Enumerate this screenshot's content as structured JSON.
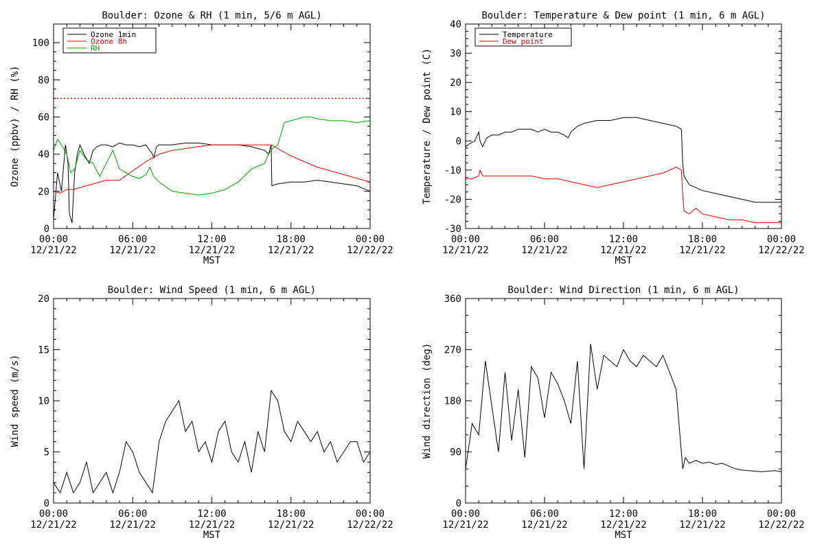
{
  "chart_data": [
    {
      "type": "line",
      "title": "Boulder: Ozone & RH (1 min, 5/6 m AGL)",
      "xlabel": "MST",
      "ylabel": "Ozone (ppbv) / RH (%)",
      "ylim": [
        0,
        110
      ],
      "yticks": [
        0,
        20,
        40,
        60,
        80,
        100
      ],
      "xlim": [
        0,
        24
      ],
      "xtick_times": [
        "00:00",
        "06:00",
        "12:00",
        "18:00",
        "00:00"
      ],
      "xtick_dates": [
        "12/21/22",
        "12/21/22",
        "12/21/22",
        "12/21/22",
        "12/22/22"
      ],
      "legend_position": "top-left",
      "reference_line": {
        "y": 70,
        "color": "#dd0000",
        "style": "dotted"
      },
      "series": [
        {
          "name": "Ozone 1min",
          "color": "#000000",
          "x": [
            0,
            0.3,
            0.6,
            0.9,
            1.1,
            1.2,
            1.4,
            1.6,
            1.8,
            2.0,
            2.3,
            2.7,
            3.0,
            3.3,
            3.6,
            4.0,
            4.5,
            5.0,
            5.5,
            6.0,
            6.5,
            7.0,
            7.5,
            7.6,
            7.8,
            8.0,
            8.5,
            9,
            10,
            11,
            12,
            13,
            14,
            15,
            16,
            16.3,
            16.5,
            16.55,
            17,
            18,
            19,
            20,
            21,
            22,
            23,
            24
          ],
          "y": [
            5,
            30,
            20,
            45,
            35,
            8,
            3,
            30,
            40,
            45,
            40,
            35,
            42,
            44,
            45,
            45,
            44,
            46,
            45,
            45,
            44,
            45,
            40,
            38,
            44,
            45,
            45,
            45,
            46,
            46,
            45,
            45,
            45,
            44,
            42,
            40,
            45,
            23,
            24,
            25,
            25,
            26,
            25,
            24,
            23,
            20
          ]
        },
        {
          "name": "Ozone 8h",
          "color": "#dd0000",
          "x": [
            0,
            0.5,
            1,
            1.5,
            2,
            3,
            4,
            5,
            6,
            7,
            8,
            9,
            10,
            11,
            12,
            13,
            14,
            15,
            16,
            16.5,
            17,
            18,
            19,
            20,
            21,
            22,
            23,
            24
          ],
          "y": [
            20,
            19,
            21,
            21,
            22,
            24,
            26,
            26,
            31,
            36,
            40,
            42,
            43,
            44,
            45,
            45,
            45,
            45,
            45,
            45,
            43,
            39,
            36,
            33,
            31,
            29,
            27,
            25
          ]
        },
        {
          "name": "RH",
          "color": "#00a000",
          "x": [
            0,
            0.3,
            0.6,
            1,
            1.3,
            1.6,
            2,
            2.5,
            3,
            3.5,
            4,
            4.5,
            5,
            5.5,
            6,
            6.5,
            7,
            7.3,
            7.6,
            8,
            9,
            10,
            11,
            12,
            13,
            14,
            15,
            16,
            16.3,
            16.5,
            16.6,
            17,
            17.5,
            18,
            19,
            19.5,
            20,
            21,
            22,
            23,
            24
          ],
          "y": [
            42,
            48,
            45,
            40,
            30,
            32,
            42,
            37,
            35,
            28,
            35,
            42,
            32,
            30,
            28,
            27,
            29,
            33,
            28,
            25,
            20,
            19,
            18,
            19,
            21,
            25,
            32,
            35,
            40,
            42,
            43,
            45,
            57,
            58,
            60,
            60,
            59,
            58,
            58,
            57,
            58
          ]
        }
      ]
    },
    {
      "type": "line",
      "title": "Boulder: Temperature & Dew point (1 min, 6 m AGL)",
      "xlabel": "MST",
      "ylabel": "Temperature / Dew point (C)",
      "ylim": [
        -30,
        40
      ],
      "yticks": [
        -30,
        -20,
        -10,
        0,
        10,
        20,
        30,
        40
      ],
      "xlim": [
        0,
        24
      ],
      "xtick_times": [
        "00:00",
        "06:00",
        "12:00",
        "18:00",
        "00:00"
      ],
      "xtick_dates": [
        "12/21/22",
        "12/21/22",
        "12/21/22",
        "12/21/22",
        "12/22/22"
      ],
      "legend_position": "top-left",
      "series": [
        {
          "name": "Temperature",
          "color": "#000000",
          "x": [
            0,
            0.3,
            0.7,
            1,
            1.1,
            1.3,
            1.6,
            2,
            2.5,
            3,
            3.5,
            4,
            4.5,
            5,
            5.5,
            6,
            6.5,
            7,
            7.5,
            7.8,
            8,
            8.5,
            9,
            10,
            11,
            12,
            13,
            14,
            15,
            16,
            16.4,
            16.5,
            16.6,
            17,
            18,
            19,
            20,
            21,
            22,
            23,
            24
          ],
          "y": [
            -2,
            -1,
            0,
            3,
            0,
            -2,
            1,
            2,
            2,
            3,
            3,
            4,
            4,
            4,
            3,
            4,
            3,
            3,
            2,
            1,
            3,
            5,
            6,
            7,
            7,
            8,
            8,
            7,
            6,
            5,
            4,
            -8,
            -12,
            -15,
            -17,
            -18,
            -19,
            -20,
            -21,
            -21,
            -21
          ]
        },
        {
          "name": "Dew point",
          "color": "#dd0000",
          "x": [
            0,
            0.5,
            1,
            1.1,
            1.3,
            1.6,
            2,
            3,
            4,
            5,
            6,
            7,
            8,
            9,
            10,
            11,
            12,
            13,
            14,
            15,
            16,
            16.4,
            16.5,
            16.6,
            17,
            17.5,
            18,
            19,
            20,
            21,
            22,
            23,
            24
          ],
          "y": [
            -13,
            -13,
            -12,
            -10,
            -12,
            -12,
            -12,
            -12,
            -12,
            -12,
            -13,
            -13,
            -14,
            -15,
            -16,
            -15,
            -14,
            -13,
            -12,
            -11,
            -9,
            -10,
            -19,
            -24,
            -25,
            -23,
            -25,
            -26,
            -27,
            -27,
            -28,
            -28,
            -28
          ]
        }
      ]
    },
    {
      "type": "line",
      "title": "Boulder: Wind Speed (1 min, 6 m AGL)",
      "xlabel": "MST",
      "ylabel": "Wind speed (m/s)",
      "ylim": [
        0,
        20
      ],
      "yticks": [
        0,
        5,
        10,
        15,
        20
      ],
      "xlim": [
        0,
        24
      ],
      "xtick_times": [
        "00:00",
        "06:00",
        "12:00",
        "18:00",
        "00:00"
      ],
      "xtick_dates": [
        "12/21/22",
        "12/21/22",
        "12/21/22",
        "12/21/22",
        "12/22/22"
      ],
      "series": [
        {
          "color": "#000000",
          "x": [
            0,
            0.5,
            1,
            1.5,
            2,
            2.5,
            3,
            3.5,
            4,
            4.5,
            5,
            5.5,
            6,
            6.5,
            7,
            7.5,
            8,
            8.5,
            9,
            9.5,
            10,
            10.5,
            11,
            11.5,
            12,
            12.5,
            13,
            13.5,
            14,
            14.5,
            15,
            15.5,
            16,
            16.5,
            17,
            17.5,
            18,
            18.5,
            19,
            19.5,
            20,
            20.5,
            21,
            21.5,
            22,
            22.5,
            23,
            23.5,
            24
          ],
          "y": [
            2,
            1,
            3,
            1,
            2,
            4,
            1,
            2,
            3,
            1,
            3,
            6,
            5,
            3,
            2,
            1,
            6,
            8,
            9,
            10,
            7,
            8,
            5,
            6,
            4,
            7,
            8,
            5,
            4,
            6,
            3,
            7,
            5,
            11,
            10,
            7,
            6,
            8,
            7,
            6,
            7,
            5,
            6,
            4,
            5,
            6,
            6,
            4,
            5
          ]
        }
      ]
    },
    {
      "type": "line",
      "title": "Boulder: Wind Direction (1 min, 6 m AGL)",
      "xlabel": "MST",
      "ylabel": "Wind direction (deg)",
      "ylim": [
        0,
        360
      ],
      "yticks": [
        0,
        90,
        180,
        270,
        360
      ],
      "xlim": [
        0,
        24
      ],
      "xtick_times": [
        "00:00",
        "06:00",
        "12:00",
        "18:00",
        "00:00"
      ],
      "xtick_dates": [
        "12/21/22",
        "12/21/22",
        "12/21/22",
        "12/21/22",
        "12/22/22"
      ],
      "series": [
        {
          "color": "#000000",
          "x": [
            0,
            0.5,
            1,
            1.5,
            2,
            2.5,
            3,
            3.5,
            4,
            4.5,
            5,
            5.5,
            6,
            6.5,
            7,
            7.5,
            8,
            8.5,
            9,
            9.5,
            10,
            10.5,
            11,
            11.5,
            12,
            12.5,
            13,
            13.5,
            14,
            14.5,
            15,
            15.5,
            16,
            16.5,
            16.7,
            17,
            17.5,
            18,
            18.5,
            19,
            19.5,
            20,
            20.5,
            21,
            21.5,
            22,
            22.5,
            23,
            23.5,
            24
          ],
          "y": [
            60,
            140,
            120,
            250,
            170,
            90,
            230,
            110,
            200,
            80,
            240,
            220,
            150,
            230,
            210,
            180,
            140,
            250,
            60,
            280,
            200,
            260,
            250,
            240,
            270,
            250,
            240,
            260,
            250,
            240,
            260,
            230,
            200,
            60,
            80,
            70,
            75,
            70,
            72,
            68,
            70,
            65,
            60,
            58,
            57,
            56,
            55,
            56,
            57,
            55
          ]
        }
      ]
    }
  ]
}
